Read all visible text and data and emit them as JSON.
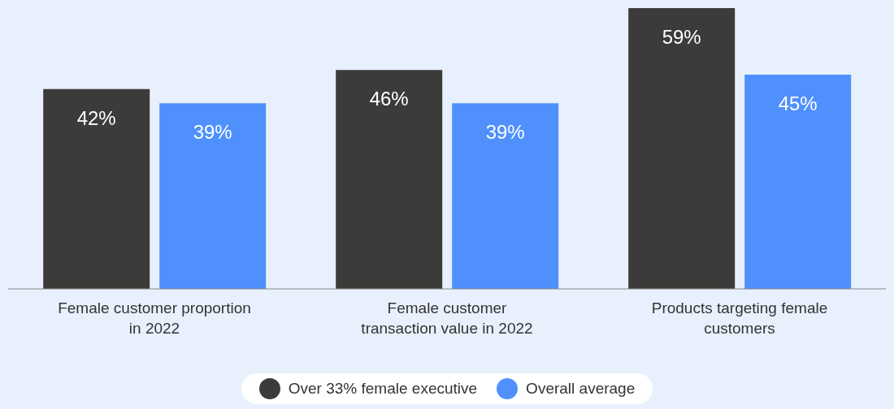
{
  "chart_data": {
    "type": "bar",
    "categories": [
      "Female customer proportion in 2022",
      "Female customer transaction value in 2022",
      "Products targeting female customers"
    ],
    "series": [
      {
        "name": "Over 33% female executive",
        "color": "#3d3b39",
        "values": [
          42,
          46,
          59
        ],
        "value_labels": [
          "42%",
          "46%",
          "59%"
        ]
      },
      {
        "name": "Overall average",
        "color": "#4f90fd",
        "values": [
          39,
          39,
          45
        ],
        "value_labels": [
          "39%",
          "39%",
          "45%"
        ]
      }
    ],
    "legend": "bottom",
    "grid": false
  }
}
